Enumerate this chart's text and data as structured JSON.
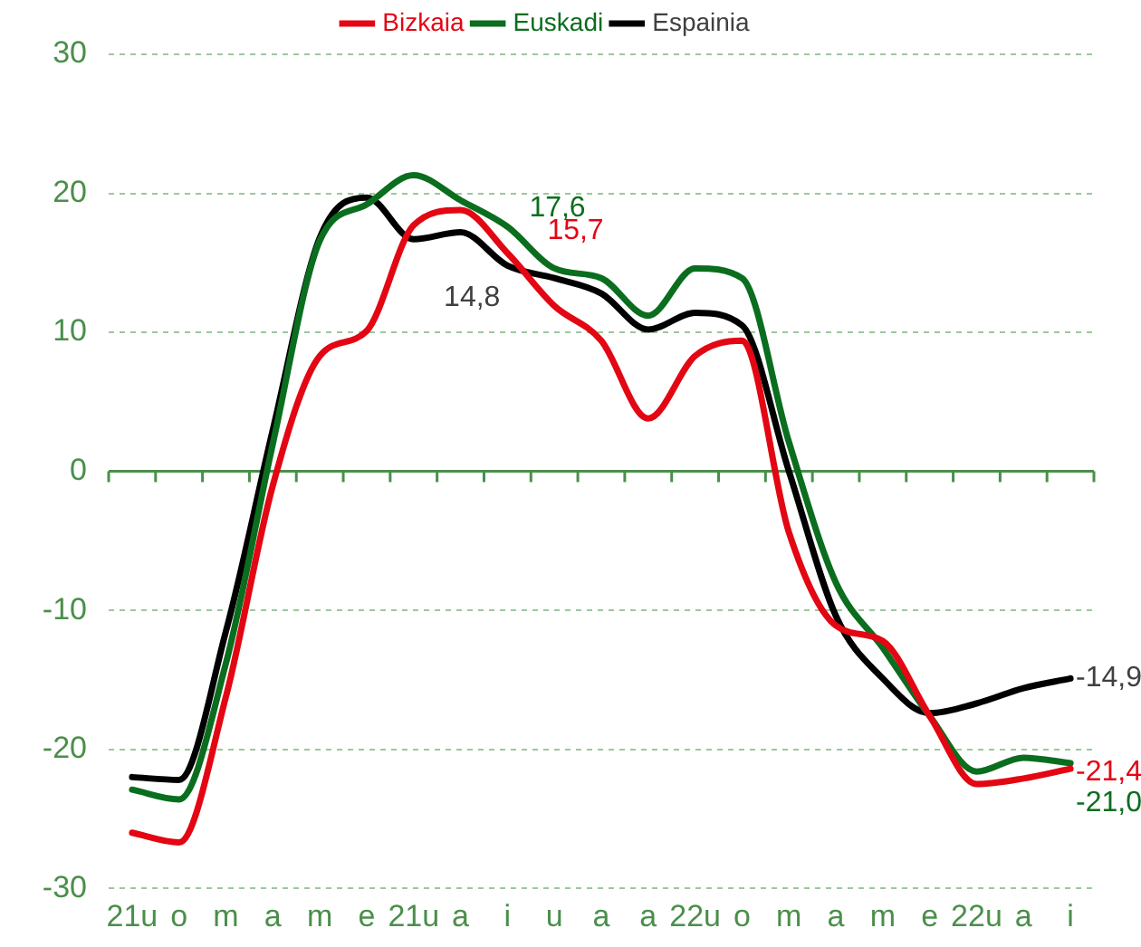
{
  "chart_data": {
    "type": "line",
    "categories": [
      "21u",
      "o",
      "m",
      "a",
      "m",
      "e",
      "21u",
      "a",
      "i",
      "u",
      "a",
      "a",
      "22u",
      "o",
      "m",
      "a",
      "m",
      "e",
      "22u",
      "a",
      "i"
    ],
    "series": [
      {
        "name": "Bizkaia",
        "color": "#e30613",
        "values": [
          -26.0,
          -26.7,
          -16.2,
          -1,
          8.3,
          10.1,
          17.7,
          18.8,
          15.7,
          11.9,
          9.4,
          3.8,
          8.3,
          9.4,
          -4.4,
          -11.1,
          -12.2,
          -17.6,
          -22.5,
          -22.1,
          -21.4
        ],
        "value_labels": [
          null,
          null,
          null,
          null,
          null,
          null,
          null,
          null,
          "15,7",
          null,
          null,
          null,
          null,
          null,
          null,
          null,
          null,
          null,
          null,
          null,
          "-21,4"
        ]
      },
      {
        "name": "Euskadi",
        "color": "#0a6e1e",
        "values": [
          -22.9,
          -23.6,
          -13.8,
          2,
          16.6,
          19.2,
          21.3,
          19.5,
          17.6,
          14.6,
          13.9,
          11.2,
          14.6,
          13.9,
          2.1,
          -8.0,
          -12.7,
          -17.6,
          -21.6,
          -20.6,
          -21.0
        ],
        "value_labels": [
          null,
          null,
          null,
          null,
          null,
          null,
          null,
          null,
          "17,6",
          null,
          null,
          null,
          null,
          null,
          null,
          null,
          null,
          null,
          null,
          null,
          "-21,0"
        ]
      },
      {
        "name": "Espainia",
        "color": "#000000",
        "values": [
          -22.0,
          -22.2,
          -11.5,
          3,
          16.8,
          19.7,
          16.7,
          17.2,
          14.8,
          13.9,
          12.8,
          10.2,
          11.4,
          10.5,
          0,
          -10.4,
          -14.9,
          -17.4,
          -16.7,
          -15.6,
          -14.9
        ],
        "value_labels": [
          null,
          null,
          null,
          null,
          null,
          null,
          null,
          null,
          "14,8",
          null,
          null,
          null,
          null,
          null,
          null,
          null,
          null,
          null,
          null,
          null,
          "-14,9"
        ]
      }
    ],
    "ref_lines": [
      {
        "axis": "y",
        "value": 0,
        "color": "#4a8f4a"
      }
    ],
    "ylim": [
      -30,
      30
    ],
    "yticks": [
      -30,
      -20,
      -10,
      0,
      10,
      20,
      30
    ],
    "grid": "y",
    "legend": "top",
    "marker": "none",
    "line_style": "solid"
  }
}
